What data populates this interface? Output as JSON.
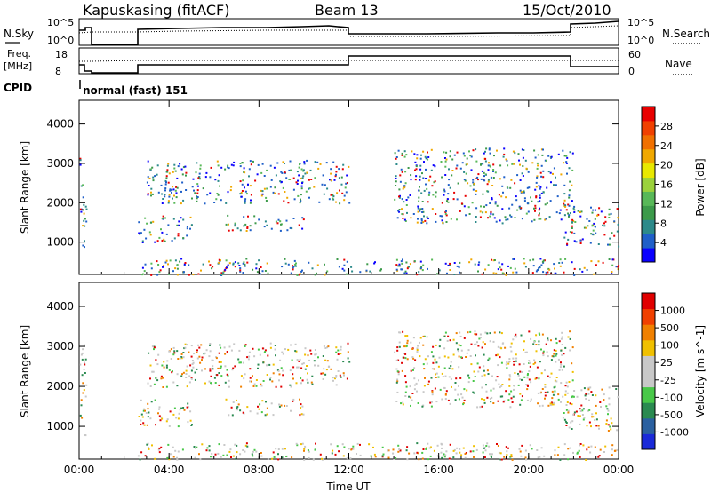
{
  "header": {
    "station": "Kapuskasing (fitACF)",
    "beam": "Beam 13",
    "date": "15/Oct/2010"
  },
  "noise_panel": {
    "left_label": "N.Sky",
    "right_label": "N.Search",
    "left_ticks": [
      "10^5",
      "10^0"
    ],
    "right_ticks": [
      "10^5",
      "10^0"
    ]
  },
  "freq_panel": {
    "left_label_1": "Freq.",
    "left_label_2": "[MHz]",
    "right_label": "Nave",
    "left_ticks": [
      "18",
      "8"
    ],
    "right_ticks": [
      "60",
      "0"
    ]
  },
  "cpid": {
    "label": "CPID",
    "value": "normal (fast) 151"
  },
  "chart_data": [
    {
      "type": "heatmap",
      "title": "",
      "ylabel": "Slant Range [km]",
      "xlabel": "Time UT",
      "ylim": [
        180,
        4600
      ],
      "y_ticks": [
        "1000",
        "2000",
        "3000",
        "4000"
      ],
      "x_ticks": [
        "00:00",
        "04:00",
        "08:00",
        "12:00",
        "16:00",
        "20:00",
        "00:00"
      ],
      "colorbar": {
        "label": "Power [dB]",
        "ticks": [
          "28",
          "24",
          "20",
          "16",
          "12",
          "8",
          "4"
        ],
        "colors": [
          "#0a00ff",
          "#1f5fc8",
          "#2c8a8a",
          "#3c9a4a",
          "#58b858",
          "#9bd23c",
          "#e8e800",
          "#f0a800",
          "#f07000",
          "#f04000",
          "#e80000"
        ]
      }
    },
    {
      "type": "heatmap",
      "title": "",
      "ylabel": "Slant Range [km]",
      "xlabel": "Time UT",
      "ylim": [
        180,
        4600
      ],
      "y_ticks": [
        "1000",
        "2000",
        "3000",
        "4000"
      ],
      "x_ticks": [
        "00:00",
        "04:00",
        "08:00",
        "12:00",
        "16:00",
        "20:00",
        "00:00"
      ],
      "colorbar": {
        "label": "Velocity [m s^-1]",
        "ticks": [
          "1000",
          "500",
          "100",
          "25",
          "-25",
          "-100",
          "-500",
          "-1000"
        ],
        "colors": [
          "#1a2ad8",
          "#2a60a0",
          "#2a8a50",
          "#48c848",
          "#c8c8c8",
          "#c8c8c8",
          "#f0c000",
          "#f08000",
          "#f04000",
          "#e00000"
        ]
      }
    }
  ],
  "x_axis": {
    "label": "Time UT",
    "ticks": [
      "00:00",
      "04:00",
      "08:00",
      "12:00",
      "16:00",
      "20:00",
      "00:00"
    ]
  }
}
